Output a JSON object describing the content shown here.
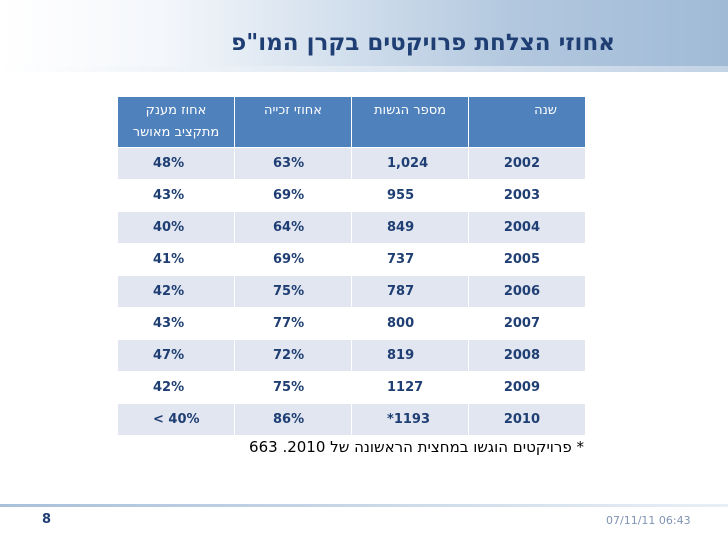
{
  "title": "אחוזי הצלחת פרויקטים בקרן המו\"פ",
  "table": {
    "headers": {
      "year": "שנה",
      "submissions": "מספר הגשות",
      "win_rate": "אחוזי זכייה",
      "approved_budget_pct_line1": "אחוז מענק",
      "approved_budget_pct_line2": "מתקציב מאושר"
    },
    "rows": [
      {
        "year": "2002",
        "submissions": "1,024",
        "win_rate": "63%",
        "grant_pct": "48%"
      },
      {
        "year": "2003",
        "submissions": "955",
        "win_rate": "69%",
        "grant_pct": "43%"
      },
      {
        "year": "2004",
        "submissions": "849",
        "win_rate": "64%",
        "grant_pct": "40%"
      },
      {
        "year": "2005",
        "submissions": "737",
        "win_rate": "69%",
        "grant_pct": "41%"
      },
      {
        "year": "2006",
        "submissions": "787",
        "win_rate": "75%",
        "grant_pct": "42%"
      },
      {
        "year": "2007",
        "submissions": "800",
        "win_rate": "77%",
        "grant_pct": "43%"
      },
      {
        "year": "2008",
        "submissions": "819",
        "win_rate": "72%",
        "grant_pct": "47%"
      },
      {
        "year": "2009",
        "submissions": "1127",
        "win_rate": "75%",
        "grant_pct": "42%"
      },
      {
        "year": "2010",
        "submissions": "1193*",
        "win_rate": "86%",
        "grant_pct": "40% >"
      }
    ]
  },
  "footnote": "* פרויקטים הוגשו במחצית הראשונה של 2010. 663",
  "footer": {
    "page_number": "8",
    "date": "07/11/11 06:43"
  },
  "colors": {
    "header_bg": "#4f81bd",
    "row_shade": "#e1e6f0",
    "title_text": "#1f3e73"
  }
}
